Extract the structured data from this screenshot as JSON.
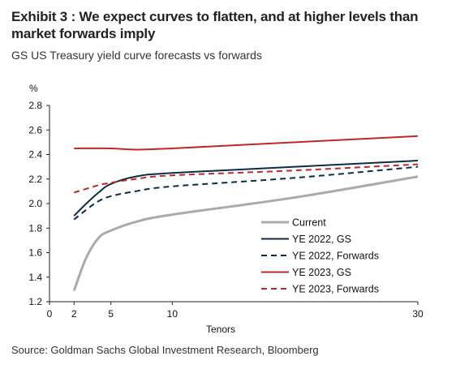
{
  "header": {
    "title": "Exhibit 3 : We expect curves to flatten, and at higher levels than market forwards imply",
    "subtitle": "GS US Treasury yield curve forecasts vs forwards"
  },
  "footer": {
    "source": "Source: Goldman Sachs Global Investment Research, Bloomberg"
  },
  "chart_data": {
    "type": "line",
    "ylabel": "%",
    "xlabel": "Tenors",
    "xlim": [
      0,
      30
    ],
    "ylim": [
      1.2,
      2.8
    ],
    "x_ticks": [
      0,
      2,
      5,
      10,
      30
    ],
    "y_ticks": [
      1.2,
      1.4,
      1.6,
      1.8,
      2.0,
      2.2,
      2.4,
      2.6,
      2.8
    ],
    "grid": false,
    "legend_position": "bottom-right",
    "series": [
      {
        "name": "Current",
        "color": "#aaaaaa",
        "dash": "solid",
        "x": [
          2,
          3,
          4,
          5,
          7,
          10,
          20,
          30
        ],
        "y": [
          1.29,
          1.56,
          1.72,
          1.78,
          1.85,
          1.91,
          2.05,
          2.22
        ]
      },
      {
        "name": "YE 2022, GS",
        "color": "#0e2c45",
        "dash": "solid",
        "x": [
          2,
          3,
          4,
          5,
          7,
          10,
          20,
          30
        ],
        "y": [
          1.9,
          2.0,
          2.09,
          2.16,
          2.22,
          2.25,
          2.3,
          2.35
        ]
      },
      {
        "name": "YE 2022, Forwards",
        "color": "#0e2c45",
        "dash": "dashed",
        "x": [
          2,
          3,
          4,
          5,
          7,
          10,
          20,
          30
        ],
        "y": [
          1.87,
          1.95,
          2.02,
          2.06,
          2.1,
          2.14,
          2.21,
          2.3
        ]
      },
      {
        "name": "YE 2023, GS",
        "color": "#c0272d",
        "dash": "solid",
        "x": [
          2,
          5,
          7,
          10,
          20,
          30
        ],
        "y": [
          2.45,
          2.45,
          2.44,
          2.45,
          2.5,
          2.55
        ]
      },
      {
        "name": "YE 2023, Forwards",
        "color": "#c0272d",
        "dash": "dashed",
        "x": [
          2,
          3,
          4,
          5,
          7,
          10,
          20,
          30
        ],
        "y": [
          2.09,
          2.12,
          2.15,
          2.17,
          2.2,
          2.23,
          2.27,
          2.32
        ]
      }
    ]
  }
}
